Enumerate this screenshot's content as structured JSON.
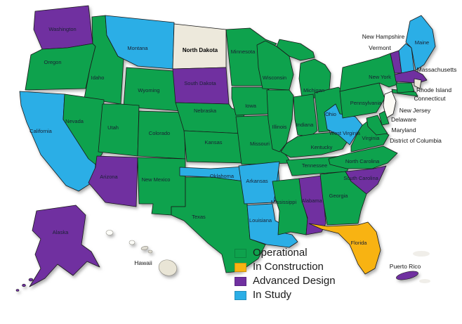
{
  "legend": {
    "items": [
      {
        "id": "operational",
        "label": "Operational"
      },
      {
        "id": "in_construction",
        "label": "In Construction"
      },
      {
        "id": "advanced_design",
        "label": "Advanced Design"
      },
      {
        "id": "in_study",
        "label": "In Study"
      }
    ]
  },
  "status_colors": {
    "operational": "#0EA24D",
    "in_construction": "#F8B312",
    "advanced_design": "#7030A0",
    "in_study": "#2BAEE6",
    "none": "#EDE9DC",
    "none_white": "#FCFBF6"
  },
  "map": {
    "border_color": "#1A1A1A",
    "inside_label_color": "#1A2133",
    "outside_label_color": "#141414"
  },
  "states": [
    {
      "id": "WA",
      "name": "Washington",
      "status": "advanced_design"
    },
    {
      "id": "OR",
      "name": "Oregon",
      "status": "operational"
    },
    {
      "id": "CA",
      "name": "California",
      "status": "in_study"
    },
    {
      "id": "ID",
      "name": "Idaho",
      "status": "operational"
    },
    {
      "id": "NV",
      "name": "Nevada",
      "status": "operational"
    },
    {
      "id": "MT",
      "name": "Montana",
      "status": "in_study"
    },
    {
      "id": "WY",
      "name": "Wyoming",
      "status": "operational"
    },
    {
      "id": "UT",
      "name": "Utah",
      "status": "operational"
    },
    {
      "id": "CO",
      "name": "Colorado",
      "status": "operational"
    },
    {
      "id": "AZ",
      "name": "Arizona",
      "status": "advanced_design"
    },
    {
      "id": "NM",
      "name": "New Mexico",
      "status": "operational"
    },
    {
      "id": "ND",
      "name": "North Dakota",
      "status": "none"
    },
    {
      "id": "SD",
      "name": "South Dakota",
      "status": "advanced_design"
    },
    {
      "id": "NE",
      "name": "Nebraska",
      "status": "operational"
    },
    {
      "id": "KS",
      "name": "Kansas",
      "status": "operational"
    },
    {
      "id": "OK",
      "name": "Oklahoma",
      "status": "in_study"
    },
    {
      "id": "TX",
      "name": "Texas",
      "status": "operational"
    },
    {
      "id": "MN",
      "name": "Minnesota",
      "status": "operational"
    },
    {
      "id": "IA",
      "name": "Iowa",
      "status": "operational"
    },
    {
      "id": "MO",
      "name": "Missouri",
      "status": "operational"
    },
    {
      "id": "AR",
      "name": "Arkansas",
      "status": "in_study"
    },
    {
      "id": "LA",
      "name": "Louisiana",
      "status": "in_study"
    },
    {
      "id": "WI",
      "name": "Wisconsin",
      "status": "operational"
    },
    {
      "id": "MI",
      "name": "Michigan",
      "status": "operational"
    },
    {
      "id": "IL",
      "name": "Illinois",
      "status": "operational"
    },
    {
      "id": "IN",
      "name": "Indiana",
      "status": "operational"
    },
    {
      "id": "OH",
      "name": "Ohio",
      "status": "operational"
    },
    {
      "id": "KY",
      "name": "Kentucky",
      "status": "operational"
    },
    {
      "id": "TN",
      "name": "Tennessee",
      "status": "operational"
    },
    {
      "id": "MS",
      "name": "Mississippi",
      "status": "operational"
    },
    {
      "id": "AL",
      "name": "Alabama",
      "status": "advanced_design"
    },
    {
      "id": "GA",
      "name": "Georgia",
      "status": "operational"
    },
    {
      "id": "FL",
      "name": "Florida",
      "status": "in_construction"
    },
    {
      "id": "SC",
      "name": "South Carolina",
      "status": "advanced_design"
    },
    {
      "id": "NC",
      "name": "North Carolina",
      "status": "operational"
    },
    {
      "id": "VA",
      "name": "Virginia",
      "status": "operational"
    },
    {
      "id": "WV",
      "name": "West Virginia",
      "status": "in_study"
    },
    {
      "id": "PA",
      "name": "Pennsylvania",
      "status": "operational"
    },
    {
      "id": "NY",
      "name": "New York",
      "status": "operational"
    },
    {
      "id": "VT",
      "name": "Vermont",
      "status": "advanced_design"
    },
    {
      "id": "NH",
      "name": "New Hampshire",
      "status": "in_study"
    },
    {
      "id": "ME",
      "name": "Maine",
      "status": "in_study"
    },
    {
      "id": "MA",
      "name": "Massachusetts",
      "status": "advanced_design"
    },
    {
      "id": "RI",
      "name": "Rhode Island",
      "status": "none"
    },
    {
      "id": "CT",
      "name": "Connecticut",
      "status": "operational"
    },
    {
      "id": "NJ",
      "name": "New Jersey",
      "status": "none"
    },
    {
      "id": "DE",
      "name": "Delaware",
      "status": "operational"
    },
    {
      "id": "MD",
      "name": "Maryland",
      "status": "operational"
    },
    {
      "id": "DC",
      "name": "District of Columbia",
      "status": "none"
    },
    {
      "id": "AK",
      "name": "Alaska",
      "status": "advanced_design"
    },
    {
      "id": "HI",
      "name": "Hawaii",
      "status": "none"
    },
    {
      "id": "PR",
      "name": "Puerto Rico",
      "status": "advanced_design"
    }
  ]
}
